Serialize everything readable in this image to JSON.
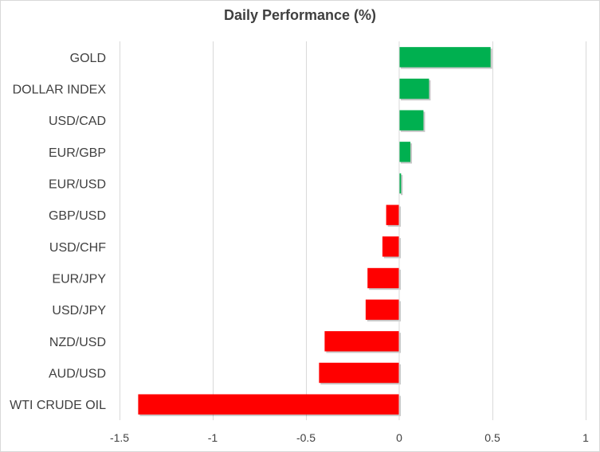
{
  "chart_data": {
    "type": "bar",
    "orientation": "horizontal",
    "title": "Daily Performance (%)",
    "xlabel": "",
    "ylabel": "",
    "xlim": [
      -1.5,
      1
    ],
    "xticks": [
      -1.5,
      -1,
      -0.5,
      0,
      0.5,
      1
    ],
    "xtick_labels": [
      "-1.5",
      "-1",
      "-0.5",
      "0",
      "0.5",
      "1"
    ],
    "grid": "vertical",
    "legend": "none",
    "categories": [
      "GOLD",
      "DOLLAR INDEX",
      "USD/CAD",
      "EUR/GBP",
      "EUR/USD",
      "GBP/USD",
      "USD/CHF",
      "EUR/JPY",
      "USD/JPY",
      "NZD/USD",
      "AUD/USD",
      "WTI CRUDE OIL"
    ],
    "values": [
      0.49,
      0.16,
      0.13,
      0.06,
      0.01,
      -0.07,
      -0.09,
      -0.17,
      -0.18,
      -0.4,
      -0.43,
      -1.4
    ],
    "colors": {
      "positive": "#00b050",
      "negative": "#ff0000",
      "grid": "#d9d9d9",
      "text": "#404040"
    }
  }
}
